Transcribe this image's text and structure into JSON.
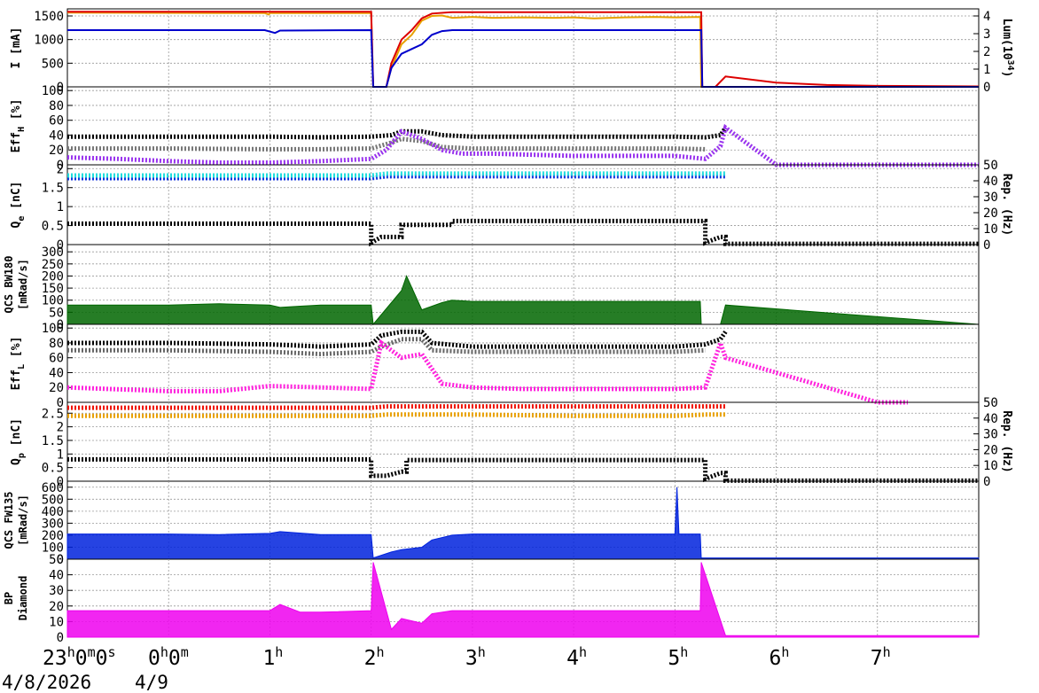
{
  "chart_data": [
    {
      "type": "line",
      "ylabel": "I [mA]",
      "yticks": [
        "1500",
        "1000",
        "500",
        "0"
      ],
      "ylim": [
        0,
        1650
      ],
      "y2label_main": "Lum(10",
      "y2label_sup": "34",
      "y2label_end": ")",
      "y2ticks": [
        "4",
        "3",
        "2",
        "1",
        "0"
      ],
      "y2lim": [
        0,
        4.4
      ],
      "series": [
        {
          "color": "#e8a000",
          "x": [
            -1,
            0.95,
            0.99,
            1.0,
            2.0,
            2.02,
            2.15,
            2.2,
            2.3,
            2.4,
            2.5,
            2.6,
            2.7,
            2.8,
            2.9,
            3.0,
            3.2,
            3.5,
            3.8,
            4.0,
            4.2,
            4.5,
            4.8,
            5.0,
            5.25,
            5.26,
            5.27,
            8.0
          ],
          "y": [
            1570,
            1560,
            1530,
            1560,
            1560,
            0,
            0,
            400,
            900,
            1100,
            1400,
            1500,
            1510,
            1460,
            1470,
            1480,
            1460,
            1470,
            1460,
            1470,
            1450,
            1470,
            1480,
            1470,
            1480,
            0,
            0,
            0
          ]
        },
        {
          "color": "#dd0000",
          "x": [
            -1,
            2.0,
            2.02,
            2.15,
            2.2,
            2.3,
            2.4,
            2.5,
            2.6,
            2.8,
            3.0,
            4.0,
            5.0,
            5.26,
            5.27,
            5.4,
            5.5,
            6.0,
            6.5,
            7.0,
            8.0
          ],
          "y": [
            1590,
            1590,
            0,
            0,
            500,
            1000,
            1200,
            1450,
            1550,
            1580,
            1580,
            1580,
            1580,
            1580,
            0,
            0,
            220,
            90,
            40,
            20,
            10
          ]
        },
        {
          "color": "#0000cc",
          "x": [
            -1,
            0.95,
            1.05,
            1.1,
            2.0,
            2.02,
            2.15,
            2.2,
            2.3,
            2.4,
            2.5,
            2.6,
            2.7,
            2.8,
            3.0,
            5.26,
            5.27,
            8.0
          ],
          "y": [
            1200,
            1200,
            1140,
            1190,
            1200,
            0,
            0,
            400,
            700,
            800,
            900,
            1100,
            1180,
            1200,
            1200,
            1200,
            0,
            0
          ]
        }
      ]
    },
    {
      "type": "scatter",
      "ylabel": "Eff",
      "ylabel_sub": "H",
      "ylabel_end": " [%]",
      "yticks": [
        "100",
        "80",
        "60",
        "40",
        "20",
        "0"
      ],
      "ylim": [
        0,
        105
      ],
      "series": [
        {
          "color": "#000000",
          "x": [
            -1,
            0,
            1,
            1.5,
            2,
            2.2,
            2.3,
            2.5,
            2.7,
            3,
            4,
            5,
            5.3,
            5.45,
            5.5
          ],
          "y": [
            38,
            38,
            38,
            37,
            38,
            40,
            45,
            45,
            40,
            38,
            38,
            38,
            37,
            40,
            50
          ]
        },
        {
          "color": "#777777",
          "x": [
            -1,
            0,
            1,
            1.5,
            2,
            2.2,
            2.3,
            2.5,
            2.7,
            3,
            4,
            5,
            5.3
          ],
          "y": [
            22,
            22,
            21,
            21,
            22,
            30,
            35,
            32,
            24,
            22,
            22,
            22,
            21
          ]
        },
        {
          "color": "#9933ee",
          "x": [
            -1,
            -0.5,
            0,
            0.5,
            1,
            1.5,
            2,
            2.15,
            2.3,
            2.5,
            2.7,
            2.9,
            3.2,
            4,
            5,
            5.3,
            5.45,
            5.5,
            6,
            8
          ],
          "y": [
            10,
            8,
            5,
            3,
            3,
            5,
            8,
            20,
            45,
            35,
            20,
            15,
            15,
            12,
            12,
            8,
            25,
            50,
            0,
            0
          ]
        }
      ]
    },
    {
      "type": "scatter",
      "ylabel": "Q",
      "ylabel_sub": "e",
      "ylabel_end": " [nC]",
      "yticks": [
        "2",
        "1.5",
        "1",
        "0.5",
        "0"
      ],
      "ylim": [
        0,
        2.1
      ],
      "y2label": "Rep. (Hz)",
      "y2ticks": [
        "50",
        "40",
        "30",
        "20",
        "10",
        "0"
      ],
      "y2lim": [
        0,
        50
      ],
      "series": [
        {
          "color": "#1133dd",
          "x": [
            -1,
            0,
            1,
            2,
            2.15,
            3,
            4,
            5,
            5.3,
            5.45,
            5.5
          ],
          "y": [
            1.75,
            1.75,
            1.75,
            1.75,
            1.8,
            1.8,
            1.8,
            1.8,
            1.8,
            1.8,
            1.8
          ]
        },
        {
          "color": "#22dddd",
          "x": [
            -1,
            0,
            1,
            2,
            2.15,
            3,
            4,
            5,
            5.3,
            5.45,
            5.5
          ],
          "y": [
            1.82,
            1.82,
            1.82,
            1.82,
            1.87,
            1.87,
            1.87,
            1.87,
            1.87,
            1.87,
            1.87
          ]
        },
        {
          "color": "#000000",
          "x": [
            -1,
            2.0,
            2.0,
            2.1,
            2.3,
            2.3,
            2.8,
            2.8,
            5.3,
            5.3,
            5.45,
            5.5,
            5.5,
            8
          ],
          "y": [
            0.55,
            0.55,
            0.05,
            0.2,
            0.2,
            0.52,
            0.52,
            0.62,
            0.62,
            0.05,
            0.2,
            0.2,
            0.02,
            0.02
          ]
        }
      ]
    },
    {
      "type": "area",
      "ylabel": "QCS BW180",
      "ylabel2": "[mRad/s]",
      "yticks": [
        "300",
        "250",
        "200",
        "150",
        "100",
        "50",
        "0"
      ],
      "ylim": [
        0,
        330
      ],
      "series": [
        {
          "color": "#006600",
          "x": [
            -1,
            0,
            0.5,
            1,
            1.1,
            1.3,
            1.5,
            2,
            2.02,
            2.2,
            2.3,
            2.35,
            2.5,
            2.7,
            2.8,
            3,
            4,
            5,
            5.25,
            5.26,
            5.45,
            5.5,
            8
          ],
          "y": [
            80,
            80,
            85,
            80,
            70,
            75,
            80,
            80,
            0,
            90,
            140,
            200,
            60,
            90,
            100,
            95,
            95,
            95,
            95,
            0,
            0,
            80,
            0
          ]
        }
      ]
    },
    {
      "type": "scatter",
      "ylabel": "Eff",
      "ylabel_sub": "L",
      "ylabel_end": " [%]",
      "yticks": [
        "100",
        "80",
        "60",
        "40",
        "20",
        "0"
      ],
      "ylim": [
        0,
        105
      ],
      "series": [
        {
          "color": "#000000",
          "x": [
            -1,
            0,
            1,
            1.5,
            2,
            2.1,
            2.3,
            2.5,
            2.6,
            3,
            4,
            5,
            5.3,
            5.45,
            5.5
          ],
          "y": [
            80,
            80,
            78,
            75,
            78,
            90,
            95,
            95,
            80,
            75,
            75,
            75,
            78,
            85,
            95
          ]
        },
        {
          "color": "#666666",
          "x": [
            -1,
            0,
            1,
            1.5,
            2,
            2.1,
            2.3,
            2.5,
            2.6,
            3,
            4,
            5,
            5.3
          ],
          "y": [
            70,
            70,
            68,
            65,
            68,
            75,
            85,
            85,
            70,
            68,
            68,
            68,
            70
          ]
        },
        {
          "color": "#ff22dd",
          "x": [
            -1,
            0,
            0.5,
            1,
            1.5,
            2,
            2.1,
            2.3,
            2.5,
            2.7,
            3,
            3.5,
            4,
            5,
            5.3,
            5.45,
            5.5,
            7,
            7.3
          ],
          "y": [
            20,
            15,
            15,
            22,
            20,
            18,
            80,
            60,
            65,
            25,
            20,
            18,
            18,
            18,
            20,
            80,
            60,
            0,
            0
          ]
        }
      ]
    },
    {
      "type": "scatter",
      "ylabel": "Q",
      "ylabel_sub": "p",
      "ylabel_end": " [nC]",
      "yticks": [
        "2.5",
        "2",
        "1.5",
        "1",
        "0.5",
        "0"
      ],
      "ylim": [
        0,
        2.9
      ],
      "y2label": "Rep. (Hz)",
      "y2ticks": [
        "50",
        "40",
        "30",
        "20",
        "10",
        "0"
      ],
      "y2lim": [
        0,
        50
      ],
      "series": [
        {
          "color": "#ee1100",
          "x": [
            -1,
            0,
            1,
            2,
            2.15,
            3,
            4,
            5,
            5.3,
            5.45,
            5.5
          ],
          "y": [
            2.7,
            2.7,
            2.7,
            2.7,
            2.75,
            2.75,
            2.75,
            2.75,
            2.75,
            2.75,
            2.75
          ]
        },
        {
          "color": "#e8a000",
          "x": [
            -1,
            0,
            1,
            2,
            2.15,
            3,
            4,
            5,
            5.3,
            5.45,
            5.5
          ],
          "y": [
            2.4,
            2.4,
            2.4,
            2.4,
            2.45,
            2.45,
            2.4,
            2.4,
            2.45,
            2.45,
            2.45
          ]
        },
        {
          "color": "#000000",
          "x": [
            -1,
            2.0,
            2.0,
            2.15,
            2.3,
            2.35,
            2.35,
            5.3,
            5.3,
            5.45,
            5.5,
            5.5,
            8
          ],
          "y": [
            0.8,
            0.8,
            0.2,
            0.2,
            0.35,
            0.35,
            0.78,
            0.78,
            0.08,
            0.3,
            0.3,
            0.02,
            0.02
          ]
        }
      ]
    },
    {
      "type": "area",
      "ylabel": "QCS FW135",
      "ylabel2": "[mRad/s]",
      "yticks": [
        "600",
        "500",
        "400",
        "300",
        "200",
        "100",
        "0"
      ],
      "ylim": [
        0,
        650
      ],
      "series": [
        {
          "color": "#0022dd",
          "x": [
            -1,
            0,
            0.5,
            1,
            1.1,
            1.5,
            2,
            2.02,
            2.2,
            2.3,
            2.5,
            2.6,
            2.8,
            3,
            4,
            5,
            5.02,
            5.04,
            5.25,
            5.26,
            5.5,
            8
          ],
          "y": [
            210,
            210,
            205,
            215,
            230,
            205,
            205,
            10,
            60,
            80,
            100,
            160,
            200,
            210,
            210,
            210,
            600,
            210,
            210,
            10,
            10,
            10
          ]
        }
      ]
    },
    {
      "type": "area",
      "ylabel": "BP",
      "ylabel2": "Diamond",
      "yticks": [
        "50",
        "40",
        "30",
        "20",
        "10",
        "0"
      ],
      "ylim": [
        0,
        50
      ],
      "series": [
        {
          "color": "#ee00ee",
          "x": [
            -1,
            0,
            0.5,
            1,
            1.1,
            1.3,
            1.5,
            2,
            2.02,
            2.2,
            2.3,
            2.5,
            2.6,
            2.8,
            3,
            4,
            5,
            5.25,
            5.26,
            5.5,
            8
          ],
          "y": [
            17,
            17,
            17,
            17,
            21,
            16,
            16,
            17,
            48,
            5,
            12,
            9,
            15,
            17,
            17,
            17,
            17,
            17,
            48,
            1,
            1
          ]
        }
      ]
    }
  ],
  "x_axis": {
    "xlim": [
      -1,
      8
    ],
    "first_tick": {
      "hour": "23",
      "h": "h",
      "min": "0",
      "m": "m",
      "sec": "0",
      "s": "s"
    },
    "midnight_tick": {
      "hour": "0",
      "h": "h",
      "min": "0",
      "m": "m"
    },
    "hour_ticks": [
      "1",
      "2",
      "3",
      "4",
      "5",
      "6",
      "7"
    ],
    "hour_suffix": "h",
    "date_start": "4/8/2026",
    "date_next": "4/9"
  }
}
